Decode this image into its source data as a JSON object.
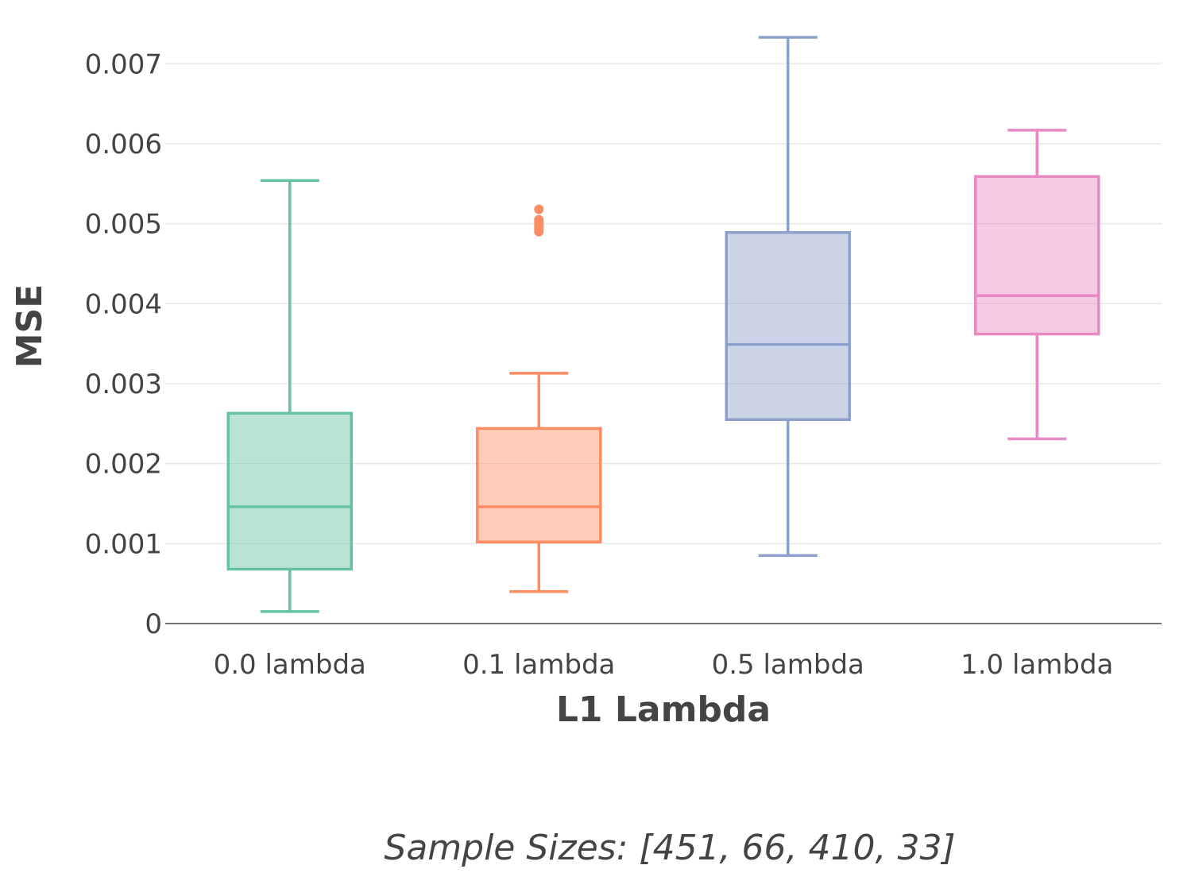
{
  "chart_data": {
    "type": "box",
    "xlabel": "L1 Lambda",
    "ylabel": "MSE",
    "ylim": [
      0,
      0.0074
    ],
    "yticks": [
      0,
      0.001,
      0.002,
      0.003,
      0.004,
      0.005,
      0.006,
      0.007
    ],
    "ytick_labels": [
      "0",
      "0.001",
      "0.002",
      "0.003",
      "0.004",
      "0.005",
      "0.006",
      "0.007"
    ],
    "grid": true,
    "legend": "none",
    "categories": [
      "0.0 lambda",
      "0.1 lambda",
      "0.5 lambda",
      "1.0 lambda"
    ],
    "series": [
      {
        "category": "0.0 lambda",
        "color": "#66c2a5",
        "min": 0.00015,
        "q1": 0.00068,
        "median": 0.00146,
        "q3": 0.00263,
        "max": 0.00554,
        "outliers": []
      },
      {
        "category": "0.1 lambda",
        "color": "#fc8d62",
        "min": 0.0004,
        "q1": 0.00102,
        "median": 0.00146,
        "q3": 0.00244,
        "max": 0.00313,
        "outliers": [
          0.0049,
          0.00493,
          0.00496,
          0.00499,
          0.00502,
          0.00505,
          0.00518
        ]
      },
      {
        "category": "0.5 lambda",
        "color": "#8da0cb",
        "min": 0.00085,
        "q1": 0.00255,
        "median": 0.00349,
        "q3": 0.00489,
        "max": 0.00733,
        "outliers": []
      },
      {
        "category": "1.0 lambda",
        "color": "#e78ac3",
        "min": 0.00231,
        "q1": 0.00362,
        "median": 0.0041,
        "q3": 0.00559,
        "max": 0.00617,
        "outliers": []
      }
    ],
    "annotation": "Sample Sizes: [451, 66, 410, 33]"
  }
}
